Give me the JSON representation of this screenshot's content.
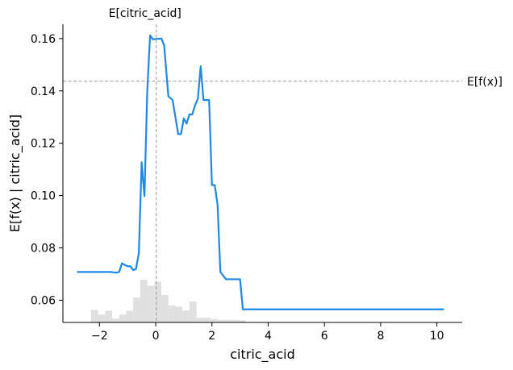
{
  "chart_data": {
    "type": "line",
    "xlabel": "citric_acid",
    "ylabel": "E[f(x) | citric_acid]",
    "xlim": [
      -3.3,
      10.9
    ],
    "ylim": [
      0.0515,
      0.1655
    ],
    "xticks": [
      -2,
      0,
      2,
      4,
      6,
      8,
      10
    ],
    "xtick_labels": [
      "−2",
      "0",
      "2",
      "4",
      "6",
      "8",
      "10"
    ],
    "yticks": [
      0.06,
      0.08,
      0.1,
      0.12,
      0.14,
      0.16
    ],
    "ytick_labels": [
      "0.06",
      "0.08",
      "0.10",
      "0.12",
      "0.14",
      "0.16"
    ],
    "expected_value_x": 0.02,
    "expected_value_x_label": "E[citric_acid]",
    "expected_value_y": 0.1437,
    "expected_value_y_label": "E[f(x)]",
    "line_color": "#1e88e5",
    "reference_line_color": "#999999",
    "histogram_color": "#e0e0e0",
    "grid": false,
    "series": [
      {
        "x": [
          -2.8,
          -1.6,
          -1.4,
          -1.3,
          -1.2,
          -1.1,
          -1.0,
          -0.9,
          -0.8,
          -0.7,
          -0.6,
          -0.5,
          -0.45,
          -0.4,
          -0.35,
          -0.3,
          -0.2,
          -0.1,
          0.05,
          0.2,
          0.3,
          0.45,
          0.6,
          0.7,
          0.8,
          0.9,
          1.0,
          1.1,
          1.2,
          1.3,
          1.4,
          1.5,
          1.6,
          1.7,
          1.8,
          1.9,
          2.0,
          2.1,
          2.2,
          2.3,
          2.5,
          2.6,
          2.7,
          2.8,
          3.0,
          3.1,
          3.3,
          4.0,
          6.0,
          8.0,
          10.25
        ],
        "y": [
          0.0708,
          0.0708,
          0.0705,
          0.0708,
          0.0741,
          0.0735,
          0.073,
          0.073,
          0.0715,
          0.072,
          0.078,
          0.1127,
          0.106,
          0.0998,
          0.12,
          0.14,
          0.1612,
          0.1597,
          0.1599,
          0.16,
          0.1575,
          0.138,
          0.1365,
          0.13,
          0.1235,
          0.1235,
          0.1295,
          0.1275,
          0.131,
          0.131,
          0.1345,
          0.137,
          0.1494,
          0.1365,
          0.1365,
          0.1365,
          0.104,
          0.104,
          0.0965,
          0.0708,
          0.068,
          0.068,
          0.068,
          0.068,
          0.068,
          0.0565,
          0.0565,
          0.0565,
          0.0565,
          0.0565,
          0.0565
        ]
      }
    ],
    "histogram": {
      "bin_left": [
        -2.3,
        -2.05,
        -1.8,
        -1.55,
        -1.3,
        -1.05,
        -0.8,
        -0.55,
        -0.3,
        -0.05,
        0.2,
        0.45,
        0.7,
        0.95,
        1.2,
        1.45,
        1.7,
        1.95,
        2.2,
        2.45,
        2.7,
        2.95
      ],
      "bin_width": 0.25,
      "counts": [
        0.0563,
        0.0545,
        0.056,
        0.053,
        0.0545,
        0.056,
        0.061,
        0.0678,
        0.0655,
        0.067,
        0.062,
        0.058,
        0.0575,
        0.056,
        0.0595,
        0.0533,
        0.0533,
        0.0528,
        0.0525,
        0.0525,
        0.0525,
        0.0523
      ]
    }
  }
}
